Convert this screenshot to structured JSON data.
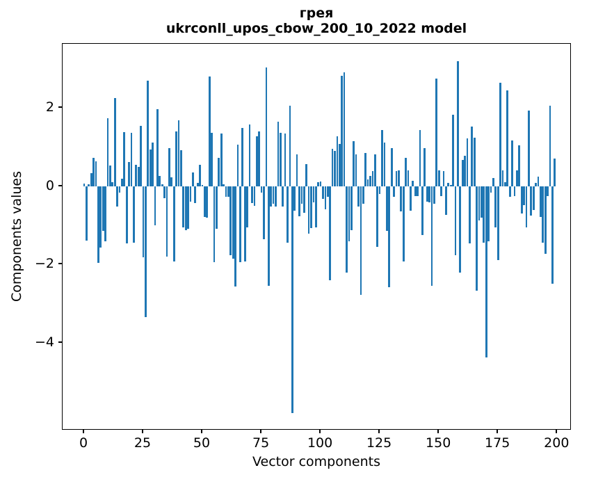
{
  "figure": {
    "title_line1": "грея",
    "title_line2": "ukrconll_upos_cbow_200_10_2022 model",
    "xlabel": "Vector components",
    "ylabel": "Components values"
  },
  "chart_data": {
    "type": "bar",
    "title": "грея — ukrconll_upos_cbow_200_10_2022 model",
    "xlabel": "Vector components",
    "ylabel": "Components values",
    "bar_color": "#1f77b4",
    "background_color": "#ffffff",
    "spine_color": "#000000",
    "grid": false,
    "legend": null,
    "bar_width_units": 0.8,
    "x_ticks": [
      0,
      25,
      50,
      75,
      100,
      125,
      150,
      175,
      200
    ],
    "y_ticks": [
      2,
      0,
      -2,
      -4
    ],
    "xlim": [
      -9.1,
      206.1
    ],
    "ylim": [
      -6.25,
      3.64
    ],
    "x_start": 0,
    "values": [
      0.07,
      -1.39,
      0.05,
      0.33,
      0.73,
      0.64,
      -1.96,
      -1.57,
      -1.15,
      -1.42,
      1.74,
      0.52,
      0.1,
      2.25,
      -0.52,
      -0.17,
      0.19,
      1.38,
      -1.46,
      0.61,
      1.36,
      -1.44,
      0.55,
      0.5,
      1.55,
      -1.82,
      -3.35,
      2.7,
      0.94,
      1.12,
      -1.0,
      1.97,
      0.26,
      0.05,
      -0.31,
      -1.8,
      0.97,
      0.23,
      -1.92,
      1.39,
      1.69,
      0.92,
      -1.06,
      -1.12,
      -1.1,
      -0.4,
      0.35,
      -0.43,
      0.09,
      0.55,
      0.03,
      -0.79,
      -0.81,
      2.81,
      1.36,
      -1.95,
      -1.09,
      0.72,
      1.34,
      0.05,
      -0.27,
      -0.27,
      -1.77,
      -1.86,
      -2.57,
      1.06,
      -1.95,
      1.48,
      -1.92,
      -1.06,
      1.57,
      -0.43,
      -0.5,
      1.28,
      1.4,
      -0.16,
      -1.35,
      3.03,
      -2.55,
      -0.52,
      -0.45,
      -0.52,
      1.64,
      1.37,
      -0.52,
      1.34,
      -1.45,
      2.05,
      -5.81,
      -0.63,
      0.81,
      -0.78,
      -0.45,
      -0.69,
      0.57,
      -1.22,
      -1.07,
      -0.42,
      -1.05,
      0.1,
      0.12,
      -0.33,
      -0.59,
      -0.28,
      -2.4,
      0.96,
      0.9,
      1.28,
      1.08,
      2.82,
      2.91,
      -2.22,
      -1.41,
      -1.12,
      1.15,
      0.81,
      -0.52,
      -2.78,
      -0.46,
      0.84,
      0.17,
      0.26,
      0.39,
      0.82,
      -1.56,
      -0.2,
      1.44,
      1.12,
      -1.15,
      -2.59,
      0.98,
      -0.28,
      0.38,
      0.41,
      -0.64,
      -1.92,
      0.73,
      0.41,
      -0.63,
      0.14,
      -0.25,
      -0.25,
      1.44,
      -1.26,
      0.98,
      -0.4,
      -0.42,
      -2.55,
      -0.46,
      2.75,
      0.41,
      -0.25,
      0.39,
      -0.73,
      0.08,
      0.03,
      1.82,
      -1.77,
      3.19,
      -2.22,
      0.67,
      0.78,
      1.22,
      -1.46,
      1.52,
      1.24,
      -2.68,
      -0.88,
      -0.8,
      -1.44,
      -4.38,
      -1.42,
      -0.16,
      0.21,
      -1.06,
      -1.89,
      2.65,
      0.41,
      0.1,
      2.45,
      -0.28,
      1.16,
      -0.25,
      0.41,
      1.04,
      -0.7,
      -0.49,
      -1.06,
      1.93,
      -0.76,
      -0.61,
      0.08,
      0.24,
      -0.79,
      -1.44,
      -1.74,
      -0.25,
      2.06,
      -2.49,
      0.7
    ]
  }
}
